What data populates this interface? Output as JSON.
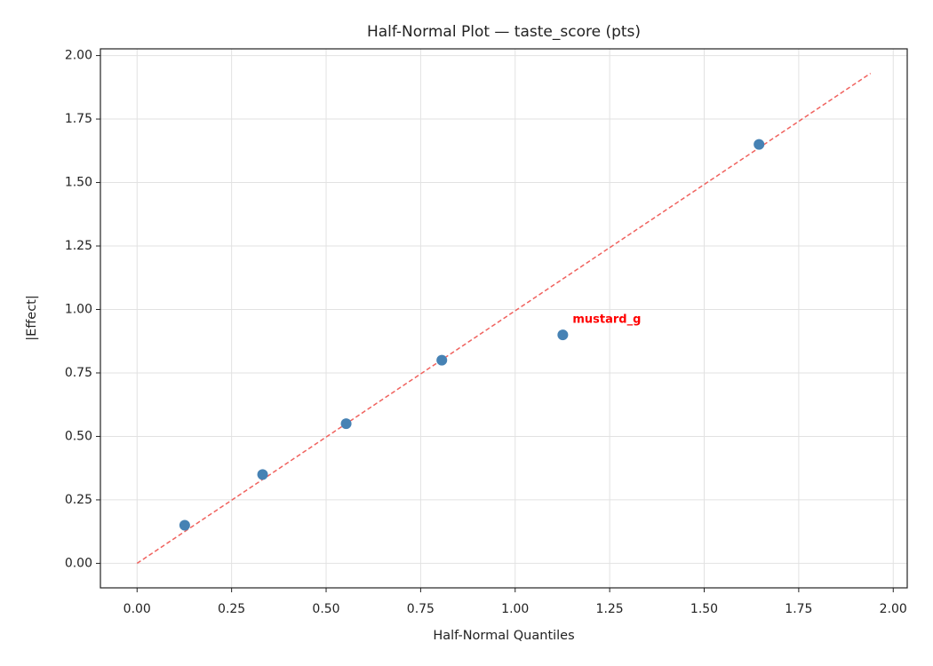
{
  "chart_data": {
    "type": "scatter",
    "title": "Half-Normal Plot — taste_score (pts)",
    "xlabel": "Half-Normal Quantiles",
    "ylabel": "|Effect|",
    "xlim": [
      -0.097,
      2.037
    ],
    "ylim": [
      -0.0965,
      2.0265
    ],
    "xticks": [
      {
        "value": 0,
        "label": "0.00"
      },
      {
        "value": 0.25,
        "label": "0.25"
      },
      {
        "value": 0.5,
        "label": "0.50"
      },
      {
        "value": 0.75,
        "label": "0.75"
      },
      {
        "value": 1,
        "label": "1.00"
      },
      {
        "value": 1.25,
        "label": "1.25"
      },
      {
        "value": 1.5,
        "label": "1.50"
      },
      {
        "value": 1.75,
        "label": "1.75"
      },
      {
        "value": 2,
        "label": "2.00"
      }
    ],
    "yticks": [
      {
        "value": 0,
        "label": "0.00"
      },
      {
        "value": 0.25,
        "label": "0.25"
      },
      {
        "value": 0.5,
        "label": "0.50"
      },
      {
        "value": 0.75,
        "label": "0.75"
      },
      {
        "value": 1,
        "label": "1.00"
      },
      {
        "value": 1.25,
        "label": "1.25"
      },
      {
        "value": 1.5,
        "label": "1.50"
      },
      {
        "value": 1.75,
        "label": "1.75"
      },
      {
        "value": 2,
        "label": "2.00"
      }
    ],
    "grid": true,
    "points": {
      "color": "#4682b4",
      "x": [
        0.126,
        0.332,
        0.553,
        0.806,
        1.126,
        1.645
      ],
      "values": [
        0.15,
        0.35,
        0.55,
        0.8,
        0.9,
        1.65
      ],
      "labels": [
        null,
        null,
        null,
        null,
        "mustard_g",
        null
      ],
      "label_color": "#ff0000"
    },
    "reference_line": {
      "color": "#f0625e",
      "x": [
        0,
        1.94
      ],
      "values": [
        0,
        1.93
      ]
    }
  }
}
